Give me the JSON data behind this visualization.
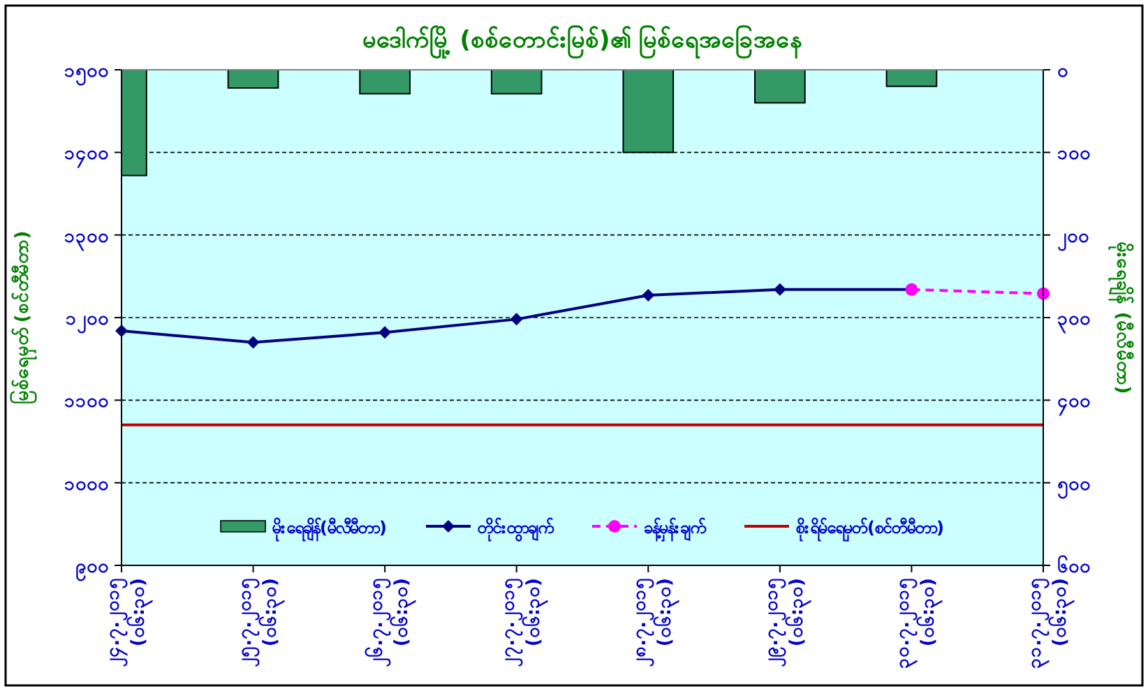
{
  "chart_data": {
    "type": "line",
    "title": "မဒေါက်မြို့ (စစ်တောင်းမြစ်)၏ မြစ်ရေအခြေအနေ",
    "ylabel": "မြစ်ရေမှတ် (စင်တီမီတာ)",
    "y2label": "မိုးရေချိန် (မီလီမီတာ)",
    "categories": [
      "၂၄.၇.၂၀၁၅\n(၀၆:၃၀)",
      "၂၅.၇.၂၀၁၅\n(၀၆:၃၀)",
      "၂၆.၇.၂၀၁၅\n(၀၆:၃၀)",
      "၂၇.၇.၂၀၁၅\n(၀၆:၃၀)",
      "၂၈.၇.၂၀၁၅\n(၀၆:၃၀)",
      "၂၉.၇.၂၀၁၅\n(၀၆:၃၀)",
      "၃၀.၇.၂၀၁၅\n(၀၆:၃၀)",
      "၃၁.၇.၂၀၁၅\n(၀၆:၃၀)"
    ],
    "series": [
      {
        "name": "မိုးရေချိန်(မီလီမီတာ)",
        "type": "bar",
        "axis": "y2",
        "color": "#339966",
        "values": [
          128,
          22,
          29,
          29,
          100,
          40,
          20,
          null
        ]
      },
      {
        "name": "တိုင်းထွာချက်",
        "color": "#000080",
        "marker": "diamond",
        "line_style": "solid",
        "values": [
          1184,
          1170,
          1182,
          1198,
          1227,
          1234,
          1234,
          null
        ]
      },
      {
        "name": "ခန့်မှန်းချက်",
        "color": "#ff00ff",
        "marker": "circle",
        "line_style": "dashed",
        "values": [
          null,
          null,
          null,
          null,
          null,
          null,
          1234,
          1229
        ]
      }
    ],
    "ref_lines": [
      {
        "axis": "y",
        "value": 1070,
        "label": "စိုးရိမ်ရေမှတ်(စင်တီမီတာ)",
        "color": "#c00000"
      }
    ],
    "ylim": [
      900,
      1500
    ],
    "yticks": [
      {
        "value": 900,
        "label": "၉၀၀"
      },
      {
        "value": 1000,
        "label": "၁၀၀၀"
      },
      {
        "value": 1100,
        "label": "၁၁၀၀"
      },
      {
        "value": 1200,
        "label": "၁၂၀၀"
      },
      {
        "value": 1300,
        "label": "၁၃၀၀"
      },
      {
        "value": 1400,
        "label": "၁၄၀၀"
      },
      {
        "value": 1500,
        "label": "၁၅၀၀"
      }
    ],
    "y2lim": [
      600,
      0
    ],
    "y2ticks": [
      {
        "value": 0,
        "label": "၀"
      },
      {
        "value": 100,
        "label": "၁၀၀"
      },
      {
        "value": 200,
        "label": "၂၀၀"
      },
      {
        "value": 300,
        "label": "၃၀၀"
      },
      {
        "value": 400,
        "label": "၄၀၀"
      },
      {
        "value": 500,
        "label": "၅၀၀"
      },
      {
        "value": 600,
        "label": "၆၀၀"
      }
    ],
    "grid": "y",
    "legend": "bottom"
  }
}
